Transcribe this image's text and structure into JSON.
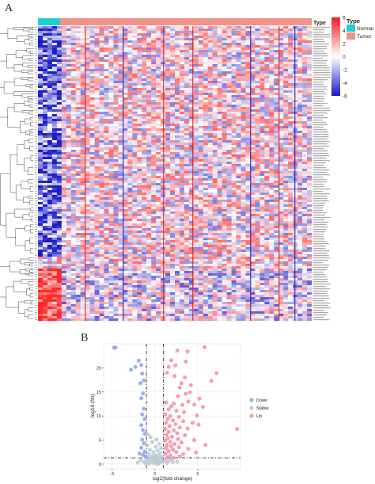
{
  "figure": {
    "panel_a": "A",
    "panel_b": "B"
  },
  "chart_data": [
    {
      "type": "heatmap",
      "annotation": {
        "title": "Type",
        "categories": [
          "Normal",
          "Tumor"
        ],
        "colors": {
          "Normal": "#1fcfcf",
          "Tumor": "#f29389"
        }
      },
      "colorbar": {
        "ticks": [
          6,
          4,
          2,
          0,
          -2,
          -4,
          -6
        ],
        "range": [
          -6,
          6
        ],
        "colors": {
          "high": "#ee1c1c",
          "mid": "#ffffff",
          "low": "#1818c8"
        }
      },
      "dendrogram": "rows"
    },
    {
      "type": "scatter",
      "title": "",
      "xlabel": "log2(fold change)",
      "ylabel": "-log10 (fdr)",
      "xticks": [
        -5,
        0,
        5
      ],
      "yticks": [
        0,
        5,
        10,
        15,
        20
      ],
      "xlim": [
        -6,
        10
      ],
      "ylim": [
        -1,
        25
      ],
      "thresholds": {
        "x": [
          -1,
          1
        ],
        "y": 1.3
      },
      "legend": {
        "position": "right",
        "entries": [
          "Down",
          "Stable",
          "Up"
        ]
      },
      "colors": {
        "Down": "#8aa0e8",
        "Stable": "#b8c7cf",
        "Up": "#f28a9a"
      },
      "series": [
        {
          "name": "Down",
          "points": [
            [
              -4.8,
              24.2
            ],
            [
              -4.6,
              24.2
            ],
            [
              -1.9,
              21.5
            ],
            [
              -2.3,
              20.2
            ],
            [
              -1.6,
              20.6
            ],
            [
              -2.8,
              19.6
            ],
            [
              -1.5,
              18.8
            ],
            [
              -1.3,
              17.4
            ],
            [
              -1.7,
              16.8
            ],
            [
              -1.4,
              14.7
            ],
            [
              -1.6,
              13.7
            ],
            [
              -1.3,
              11.5
            ],
            [
              -1.5,
              10.3
            ],
            [
              -1.2,
              9.4
            ],
            [
              -1.6,
              8.1
            ],
            [
              -1.4,
              7.1
            ],
            [
              -1.2,
              6.3
            ],
            [
              -1.5,
              5.1
            ],
            [
              -1.3,
              4.3
            ],
            [
              -1.6,
              3.4
            ],
            [
              -1.2,
              2.6
            ],
            [
              -1.4,
              1.9
            ],
            [
              -1.8,
              2.2
            ],
            [
              -1.1,
              1.6
            ]
          ]
        },
        {
          "name": "Stable",
          "points": [
            [
              -0.8,
              6.2
            ],
            [
              -0.5,
              5.6
            ],
            [
              0.2,
              5.1
            ],
            [
              -0.3,
              4.6
            ],
            [
              0.5,
              4.2
            ],
            [
              -0.9,
              3.9
            ],
            [
              0.1,
              3.6
            ],
            [
              0.7,
              3.3
            ],
            [
              -0.6,
              3.0
            ],
            [
              0.3,
              2.8
            ],
            [
              -0.2,
              2.5
            ],
            [
              0.6,
              2.3
            ],
            [
              -0.7,
              2.1
            ],
            [
              0.0,
              1.9
            ],
            [
              0.4,
              1.8
            ],
            [
              -0.4,
              1.6
            ],
            [
              0.8,
              1.5
            ],
            [
              -0.1,
              1.4
            ],
            [
              0.2,
              1.3
            ],
            [
              -0.6,
              1.2
            ],
            [
              0.5,
              1.1
            ],
            [
              -0.3,
              1.0
            ],
            [
              0.1,
              0.9
            ],
            [
              0.7,
              0.8
            ],
            [
              -0.8,
              0.7
            ],
            [
              0.3,
              0.6
            ],
            [
              -0.5,
              0.5
            ],
            [
              0.0,
              0.4
            ],
            [
              0.6,
              0.3
            ],
            [
              -0.2,
              0.2
            ],
            [
              0.4,
              0.15
            ],
            [
              -0.7,
              0.1
            ],
            [
              0.9,
              0.6
            ],
            [
              -0.9,
              1.3
            ],
            [
              0.2,
              0.05
            ],
            [
              1.2,
              0.8
            ],
            [
              1.6,
              0.6
            ],
            [
              -1.3,
              0.5
            ],
            [
              -1.7,
              0.9
            ],
            [
              2.1,
              0.4
            ],
            [
              1.9,
              1.0
            ],
            [
              -2.0,
              0.3
            ],
            [
              2.6,
              0.5
            ],
            [
              1.4,
              0.2
            ],
            [
              -1.1,
              0.2
            ]
          ]
        },
        {
          "name": "Up",
          "points": [
            [
              5.8,
              24.3
            ],
            [
              2.6,
              23.6
            ],
            [
              3.8,
              23.4
            ],
            [
              3.6,
              21.3
            ],
            [
              1.9,
              21.6
            ],
            [
              1.6,
              20.2
            ],
            [
              2.4,
              20.5
            ],
            [
              1.4,
              19.0
            ],
            [
              2.3,
              18.3
            ],
            [
              3.5,
              18.0
            ],
            [
              7.2,
              18.9
            ],
            [
              6.6,
              17.3
            ],
            [
              3.1,
              16.8
            ],
            [
              4.2,
              16.4
            ],
            [
              2.9,
              15.9
            ],
            [
              4.1,
              14.9
            ],
            [
              3.6,
              14.6
            ],
            [
              2.7,
              14.1
            ],
            [
              5.2,
              13.6
            ],
            [
              3.9,
              13.0
            ],
            [
              2.2,
              12.6
            ],
            [
              1.3,
              12.8
            ],
            [
              1.9,
              12.0
            ],
            [
              3.2,
              12.3
            ],
            [
              4.6,
              12.4
            ],
            [
              5.6,
              11.9
            ],
            [
              1.6,
              11.4
            ],
            [
              2.5,
              11.1
            ],
            [
              3.4,
              10.8
            ],
            [
              1.2,
              10.3
            ],
            [
              1.8,
              10.0
            ],
            [
              4.9,
              10.1
            ],
            [
              2.8,
              9.8
            ],
            [
              1.5,
              9.4
            ],
            [
              2.1,
              9.1
            ],
            [
              3.3,
              8.9
            ],
            [
              1.3,
              8.6
            ],
            [
              2.4,
              8.3
            ],
            [
              4.4,
              8.6
            ],
            [
              5.1,
              8.2
            ],
            [
              1.7,
              7.9
            ],
            [
              2.9,
              7.6
            ],
            [
              1.2,
              7.3
            ],
            [
              3.8,
              7.4
            ],
            [
              2.2,
              7.0
            ],
            [
              1.6,
              6.7
            ],
            [
              2.6,
              6.4
            ],
            [
              9.6,
              7.3
            ],
            [
              1.3,
              6.1
            ],
            [
              3.5,
              6.0
            ],
            [
              2.0,
              5.7
            ],
            [
              1.5,
              5.4
            ],
            [
              2.7,
              5.2
            ],
            [
              4.6,
              5.0
            ],
            [
              1.2,
              4.9
            ],
            [
              1.8,
              4.6
            ],
            [
              3.1,
              4.5
            ],
            [
              2.3,
              4.2
            ],
            [
              1.4,
              4.0
            ],
            [
              1.9,
              3.7
            ],
            [
              5.9,
              4.0
            ],
            [
              2.8,
              3.5
            ],
            [
              1.3,
              3.3
            ],
            [
              3.9,
              3.2
            ],
            [
              2.1,
              3.0
            ],
            [
              1.6,
              2.7
            ],
            [
              2.5,
              2.5
            ],
            [
              4.8,
              2.4
            ],
            [
              1.2,
              2.2
            ],
            [
              3.3,
              2.1
            ],
            [
              1.8,
              1.8
            ],
            [
              2.9,
              1.6
            ],
            [
              1.4,
              1.4
            ],
            [
              2.2,
              1.3
            ]
          ]
        }
      ]
    }
  ]
}
